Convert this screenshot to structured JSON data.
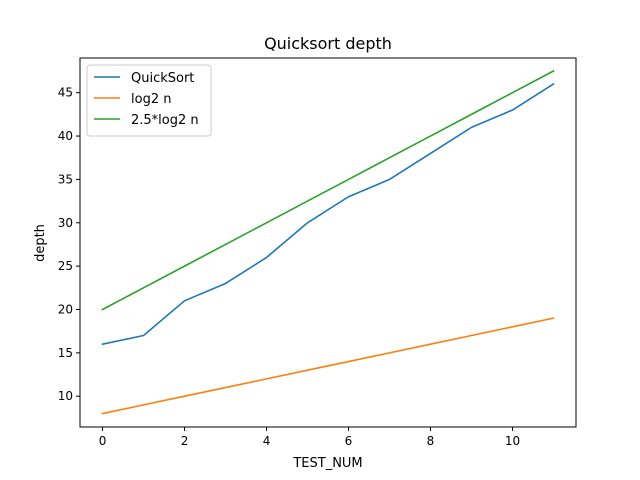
{
  "chart_data": {
    "type": "line",
    "title": "Quicksort depth",
    "xlabel": "TEST_NUM",
    "ylabel": "depth",
    "x": [
      0,
      1,
      2,
      3,
      4,
      5,
      6,
      7,
      8,
      9,
      10,
      11
    ],
    "xlim": [
      -0.55,
      11.55
    ],
    "ylim": [
      6.45,
      49.0
    ],
    "xticks": [
      0,
      2,
      4,
      6,
      8,
      10
    ],
    "yticks": [
      10,
      15,
      20,
      25,
      30,
      35,
      40,
      45
    ],
    "xtick_labels": [
      "0",
      "2",
      "4",
      "6",
      "8",
      "10"
    ],
    "ytick_labels": [
      "10",
      "15",
      "20",
      "25",
      "30",
      "35",
      "40",
      "45"
    ],
    "grid": false,
    "legend_position": "top-left",
    "series": [
      {
        "name": "QuickSort",
        "color": "#1f77b4",
        "values": [
          16,
          17,
          21,
          23,
          26,
          30,
          33,
          35,
          38,
          41,
          43,
          46
        ]
      },
      {
        "name": "log2 n",
        "color": "#ff7f0e",
        "values": [
          8,
          9,
          10,
          11,
          12,
          13,
          14,
          15,
          16,
          17,
          18,
          19
        ]
      },
      {
        "name": "2.5*log2 n",
        "color": "#2ca02c",
        "values": [
          20,
          22.5,
          25,
          27.5,
          30,
          32.5,
          35,
          37.5,
          40,
          42.5,
          45,
          47.5
        ]
      }
    ]
  }
}
